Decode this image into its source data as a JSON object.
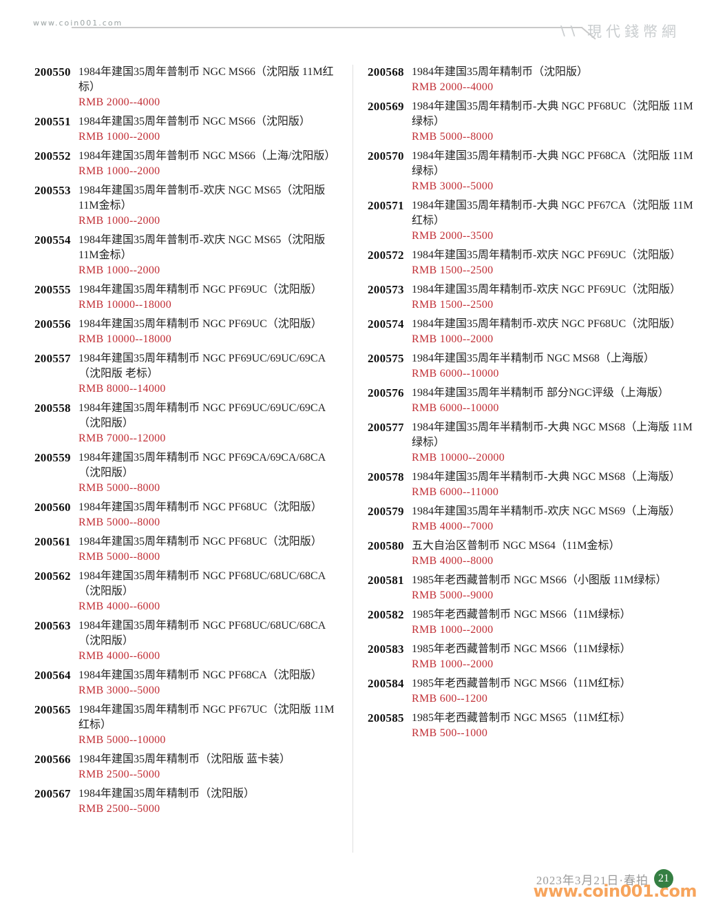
{
  "colors": {
    "price-red": "#c12e35",
    "badge-green": "#357f43",
    "watermark-orange": "#f7a45c",
    "rule-gray": "#c9c9c9",
    "brand-gray": "#c9cdcf",
    "muted-gray": "#9b9b9b"
  },
  "header": {
    "site_url": "www.coin001.com",
    "brand_slashes": "\\\\",
    "brand_name": "現代錢幣網"
  },
  "footer": {
    "auction_date": "2023年3月21日·春拍",
    "page_number": "21",
    "watermark": "www.coin001.com"
  },
  "columns": {
    "left": [
      {
        "lot": "200550",
        "desc": "1984年建国35周年普制币 NGC MS66（沈阳版 11M红标）",
        "price": "RMB 2000--4000"
      },
      {
        "lot": "200551",
        "desc": "1984年建国35周年普制币 NGC MS66（沈阳版）",
        "price": "RMB 1000--2000"
      },
      {
        "lot": "200552",
        "desc": "1984年建国35周年普制币 NGC MS66（上海/沈阳版）",
        "price": "RMB 1000--2000"
      },
      {
        "lot": "200553",
        "desc": "1984年建国35周年普制币-欢庆 NGC MS65（沈阳版 11M金标）",
        "price": "RMB 1000--2000"
      },
      {
        "lot": "200554",
        "desc": "1984年建国35周年普制币-欢庆 NGC MS65（沈阳版 11M金标）",
        "price": "RMB 1000--2000"
      },
      {
        "lot": "200555",
        "desc": "1984年建国35周年精制币 NGC PF69UC（沈阳版）",
        "price": "RMB 10000--18000"
      },
      {
        "lot": "200556",
        "desc": "1984年建国35周年精制币 NGC PF69UC（沈阳版）",
        "price": "RMB 10000--18000"
      },
      {
        "lot": "200557",
        "desc": "1984年建国35周年精制币 NGC PF69UC/69UC/69CA（沈阳版 老标）",
        "price": "RMB 8000--14000"
      },
      {
        "lot": "200558",
        "desc": "1984年建国35周年精制币 NGC PF69UC/69UC/69CA（沈阳版）",
        "price": "RMB 7000--12000"
      },
      {
        "lot": "200559",
        "desc": "1984年建国35周年精制币 NGC PF69CA/69CA/68CA（沈阳版）",
        "price": "RMB 5000--8000"
      },
      {
        "lot": "200560",
        "desc": "1984年建国35周年精制币 NGC PF68UC（沈阳版）",
        "price": "RMB 5000--8000"
      },
      {
        "lot": "200561",
        "desc": "1984年建国35周年精制币 NGC PF68UC（沈阳版）",
        "price": "RMB 5000--8000"
      },
      {
        "lot": "200562",
        "desc": "1984年建国35周年精制币 NGC PF68UC/68UC/68CA（沈阳版）",
        "price": "RMB 4000--6000"
      },
      {
        "lot": "200563",
        "desc": "1984年建国35周年精制币 NGC PF68UC/68UC/68CA（沈阳版）",
        "price": "RMB 4000--6000"
      },
      {
        "lot": "200564",
        "desc": "1984年建国35周年精制币 NGC PF68CA（沈阳版）",
        "price": "RMB 3000--5000"
      },
      {
        "lot": "200565",
        "desc": "1984年建国35周年精制币 NGC PF67UC（沈阳版 11M红标）",
        "price": "RMB 5000--10000"
      },
      {
        "lot": "200566",
        "desc": "1984年建国35周年精制币（沈阳版 蓝卡装）",
        "price": "RMB 2500--5000"
      },
      {
        "lot": "200567",
        "desc": "1984年建国35周年精制币（沈阳版）",
        "price": "RMB 2500--5000"
      }
    ],
    "right": [
      {
        "lot": "200568",
        "desc": "1984年建国35周年精制币（沈阳版）",
        "price": "RMB 2000--4000"
      },
      {
        "lot": "200569",
        "desc": "1984年建国35周年精制币-大典 NGC PF68UC（沈阳版 11M绿标）",
        "price": "RMB 5000--8000"
      },
      {
        "lot": "200570",
        "desc": "1984年建国35周年精制币-大典 NGC PF68CA（沈阳版 11M绿标）",
        "price": "RMB 3000--5000"
      },
      {
        "lot": "200571",
        "desc": "1984年建国35周年精制币-大典 NGC PF67CA（沈阳版 11M红标）",
        "price": "RMB 2000--3500"
      },
      {
        "lot": "200572",
        "desc": "1984年建国35周年精制币-欢庆 NGC PF69UC（沈阳版）",
        "price": "RMB 1500--2500"
      },
      {
        "lot": "200573",
        "desc": "1984年建国35周年精制币-欢庆 NGC PF69UC（沈阳版）",
        "price": "RMB 1500--2500"
      },
      {
        "lot": "200574",
        "desc": "1984年建国35周年精制币-欢庆 NGC PF68UC（沈阳版）",
        "price": "RMB 1000--2000"
      },
      {
        "lot": "200575",
        "desc": "1984年建国35周年半精制币 NGC MS68（上海版）",
        "price": "RMB 6000--10000"
      },
      {
        "lot": "200576",
        "desc": "1984年建国35周年半精制币 部分NGC评级（上海版）",
        "price": "RMB 6000--10000"
      },
      {
        "lot": "200577",
        "desc": "1984年建国35周年半精制币-大典 NGC MS68（上海版 11M绿标）",
        "price": "RMB 10000--20000"
      },
      {
        "lot": "200578",
        "desc": "1984年建国35周年半精制币-大典 NGC MS68（上海版）",
        "price": "RMB 6000--11000"
      },
      {
        "lot": "200579",
        "desc": "1984年建国35周年半精制币-欢庆 NGC MS69（上海版）",
        "price": "RMB 4000--7000"
      },
      {
        "lot": "200580",
        "desc": "五大自治区普制币 NGC MS64（11M金标）",
        "price": "RMB 4000--8000"
      },
      {
        "lot": "200581",
        "desc": "1985年老西藏普制币 NGC MS66（小图版 11M绿标）",
        "price": "RMB 5000--9000"
      },
      {
        "lot": "200582",
        "desc": "1985年老西藏普制币 NGC MS66（11M绿标）",
        "price": "RMB 1000--2000"
      },
      {
        "lot": "200583",
        "desc": "1985年老西藏普制币 NGC MS66（11M绿标）",
        "price": "RMB 1000--2000"
      },
      {
        "lot": "200584",
        "desc": "1985年老西藏普制币 NGC MS66（11M红标）",
        "price": "RMB 600--1200"
      },
      {
        "lot": "200585",
        "desc": "1985年老西藏普制币 NGC MS65（11M红标）",
        "price": "RMB 500--1000"
      }
    ]
  }
}
